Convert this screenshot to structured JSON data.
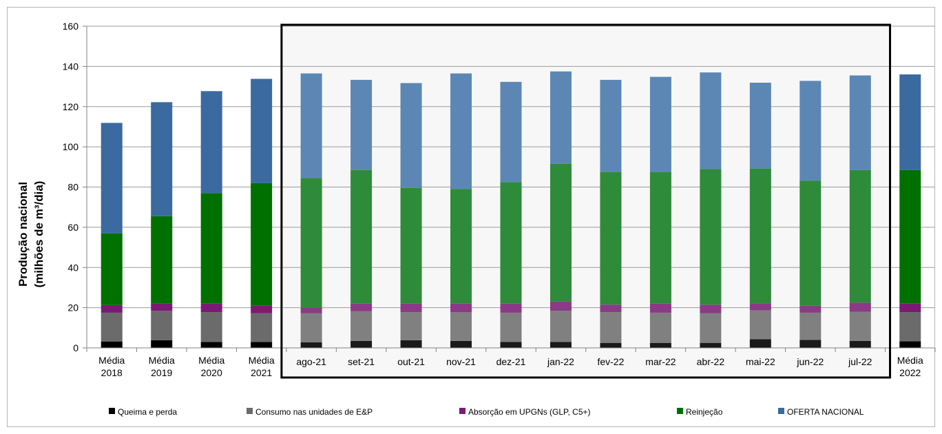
{
  "chart_data": {
    "type": "bar",
    "stacked": true,
    "ylabel_line1": "Produção nacional",
    "ylabel_line2": "(milhões de m³/dia)",
    "ylim": [
      0,
      160
    ],
    "yticks": [
      0,
      20,
      40,
      60,
      80,
      100,
      120,
      140,
      160
    ],
    "grid": true,
    "legend_position": "bottom",
    "highlight_box": "around monthly bars ago-21 to jul-22",
    "categories": [
      [
        "Média",
        "2018"
      ],
      [
        "Média",
        "2019"
      ],
      [
        "Média",
        "2020"
      ],
      [
        "Média",
        "2021"
      ],
      [
        "ago-21"
      ],
      [
        "set-21"
      ],
      [
        "out-21"
      ],
      [
        "nov-21"
      ],
      [
        "dez-21"
      ],
      [
        "jan-22"
      ],
      [
        "fev-22"
      ],
      [
        "mar-22"
      ],
      [
        "abr-22"
      ],
      [
        "mai-22"
      ],
      [
        "jun-22"
      ],
      [
        "jul-22"
      ],
      [
        "Média",
        "2022"
      ]
    ],
    "series": [
      {
        "name": "Queima e perda",
        "color": "#000000",
        "monthly_color": "#1a1a1a",
        "values": [
          3.2,
          3.8,
          3.0,
          3.0,
          2.8,
          3.5,
          3.8,
          3.5,
          3.0,
          3.0,
          2.5,
          2.5,
          2.5,
          4.3,
          4.0,
          3.5,
          3.3
        ]
      },
      {
        "name": "Consumo nas unidades de E&P",
        "color": "#6b6b6b",
        "monthly_color": "#808080",
        "values": [
          14.3,
          14.6,
          14.8,
          14.2,
          14.5,
          14.7,
          14.0,
          14.2,
          14.5,
          15.5,
          15.3,
          15.0,
          14.8,
          14.4,
          13.5,
          14.5,
          14.5
        ]
      },
      {
        "name": "Absorção em UPGNs (GLP, C5+)",
        "color": "#7b1a75",
        "monthly_color": "#8b3a87",
        "values": [
          3.8,
          3.8,
          4.2,
          3.8,
          2.7,
          3.8,
          4.2,
          4.3,
          4.5,
          4.5,
          3.7,
          4.5,
          4.2,
          3.5,
          3.5,
          4.5,
          4.2
        ]
      },
      {
        "name": "Reinjeção",
        "color": "#007000",
        "monthly_color": "#2e8b3a",
        "values": [
          35.7,
          43.3,
          55.0,
          61.0,
          64.5,
          66.5,
          57.5,
          57.0,
          60.5,
          68.5,
          66.0,
          65.5,
          67.5,
          67.0,
          62.2,
          66.0,
          66.5
        ]
      },
      {
        "name": "OFERTA NACIONAL",
        "color": "#3b6aa0",
        "monthly_color": "#5c87b5",
        "values": [
          54.9,
          56.7,
          50.7,
          51.8,
          52.0,
          44.8,
          52.2,
          57.5,
          49.8,
          46.0,
          45.8,
          47.3,
          48.0,
          42.7,
          49.6,
          47.0,
          47.5
        ]
      }
    ]
  }
}
